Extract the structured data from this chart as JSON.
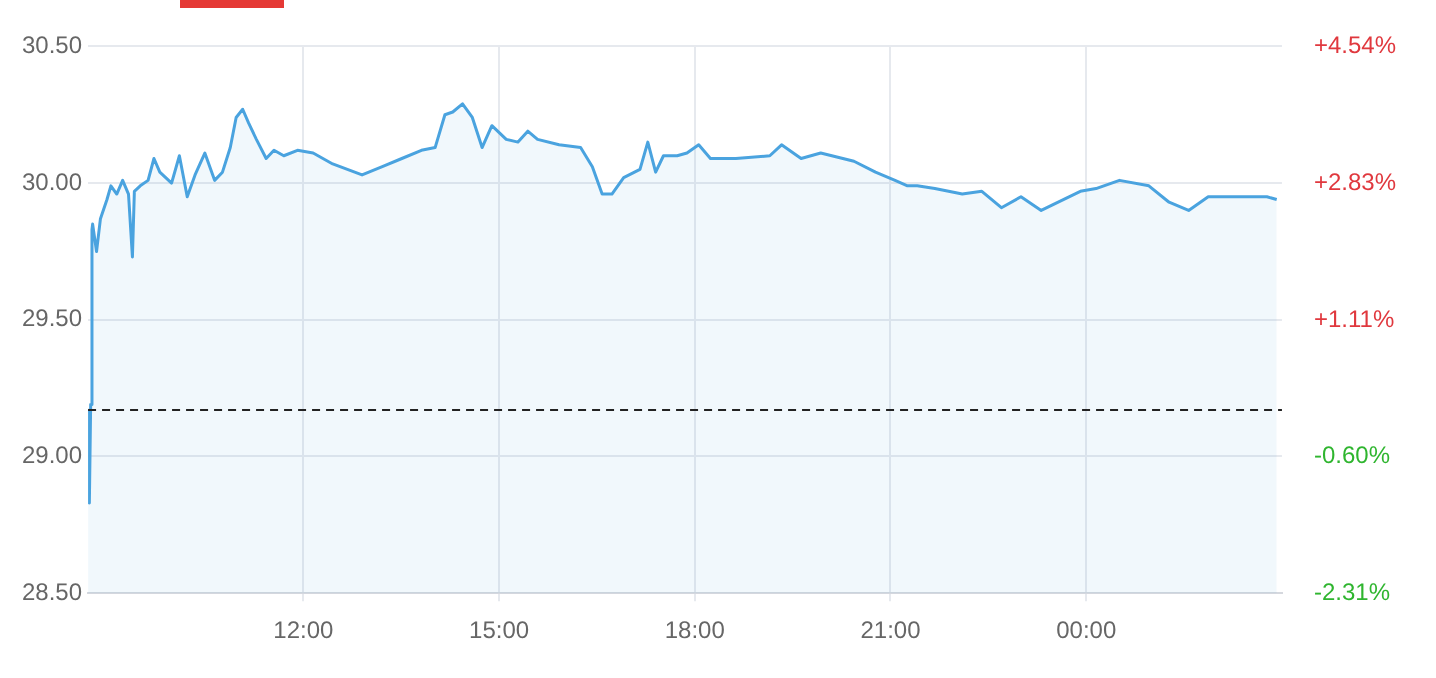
{
  "chart_data": {
    "type": "area",
    "x": [
      8.7,
      8.72,
      8.74,
      8.76,
      8.77,
      8.83,
      8.89,
      8.99,
      9.05,
      9.14,
      9.23,
      9.32,
      9.38,
      9.41,
      9.5,
      9.62,
      9.71,
      9.8,
      9.98,
      10.1,
      10.22,
      10.34,
      10.49,
      10.64,
      10.76,
      10.88,
      10.97,
      11.07,
      11.16,
      11.28,
      11.43,
      11.55,
      11.7,
      11.91,
      12.15,
      12.45,
      12.9,
      13.21,
      13.51,
      13.81,
      14.02,
      14.17,
      14.29,
      14.44,
      14.59,
      14.74,
      14.89,
      15.11,
      15.29,
      15.44,
      15.59,
      15.92,
      16.25,
      16.43,
      16.58,
      16.73,
      16.91,
      17.16,
      17.28,
      17.4,
      17.52,
      17.73,
      17.88,
      18.06,
      18.24,
      18.63,
      19.15,
      19.33,
      19.63,
      19.93,
      20.44,
      20.77,
      21.07,
      21.26,
      21.41,
      21.68,
      22.1,
      22.4,
      22.7,
      23.0,
      23.31,
      23.91,
      24.15,
      24.51,
      24.96,
      25.27,
      25.57,
      25.87,
      26.32,
      26.77,
      26.92
    ],
    "series": [
      {
        "color": "#4aa3df",
        "values": [
          29.17,
          28.83,
          29.19,
          29.83,
          29.85,
          29.75,
          29.87,
          29.94,
          29.99,
          29.96,
          30.01,
          29.96,
          29.73,
          29.97,
          29.99,
          30.01,
          30.09,
          30.04,
          30.0,
          30.1,
          29.95,
          30.03,
          30.11,
          30.01,
          30.04,
          30.13,
          30.24,
          30.27,
          30.22,
          30.16,
          30.09,
          30.12,
          30.1,
          30.12,
          30.11,
          30.07,
          30.03,
          30.06,
          30.09,
          30.12,
          30.13,
          30.25,
          30.26,
          30.29,
          30.24,
          30.13,
          30.21,
          30.16,
          30.15,
          30.19,
          30.16,
          30.14,
          30.13,
          30.06,
          29.96,
          29.96,
          30.02,
          30.05,
          30.15,
          30.04,
          30.1,
          30.1,
          30.11,
          30.14,
          30.09,
          30.09,
          30.1,
          30.14,
          30.09,
          30.11,
          30.08,
          30.04,
          30.01,
          29.99,
          29.99,
          29.98,
          29.96,
          29.97,
          29.91,
          29.95,
          29.9,
          29.97,
          29.98,
          30.01,
          29.99,
          29.93,
          29.9,
          29.95,
          29.95,
          29.95,
          29.94
        ]
      }
    ],
    "xlim": [
      8.7,
      27.0
    ],
    "xticks": [
      {
        "value": 12,
        "label": "12:00"
      },
      {
        "value": 15,
        "label": "15:00"
      },
      {
        "value": 18,
        "label": "18:00"
      },
      {
        "value": 21,
        "label": "21:00"
      },
      {
        "value": 24,
        "label": "00:00"
      }
    ],
    "ylim": [
      28.5,
      30.5
    ],
    "yticks": [
      {
        "value": 28.5,
        "label": "28.50"
      },
      {
        "value": 29,
        "label": "29.00"
      },
      {
        "value": 29.5,
        "label": "29.50"
      },
      {
        "value": 30,
        "label": "30.00"
      },
      {
        "value": 30.5,
        "label": "30.50"
      }
    ],
    "y2lim": [
      -2.31,
      4.54
    ],
    "y2ticks": [
      {
        "value": -2.31,
        "label": "-2.31%"
      },
      {
        "value": -0.6,
        "label": "-0.60%"
      },
      {
        "value": 1.11,
        "label": "+1.11%"
      },
      {
        "value": 2.83,
        "label": "+2.83%"
      },
      {
        "value": 4.54,
        "label": "+4.54%"
      }
    ],
    "ref_lines": [
      {
        "axis": "y",
        "value": 29.17,
        "color": "#222222",
        "line_style": "dashed"
      }
    ],
    "grid": true,
    "legend": false,
    "marker": "none",
    "line_style": "solid"
  }
}
